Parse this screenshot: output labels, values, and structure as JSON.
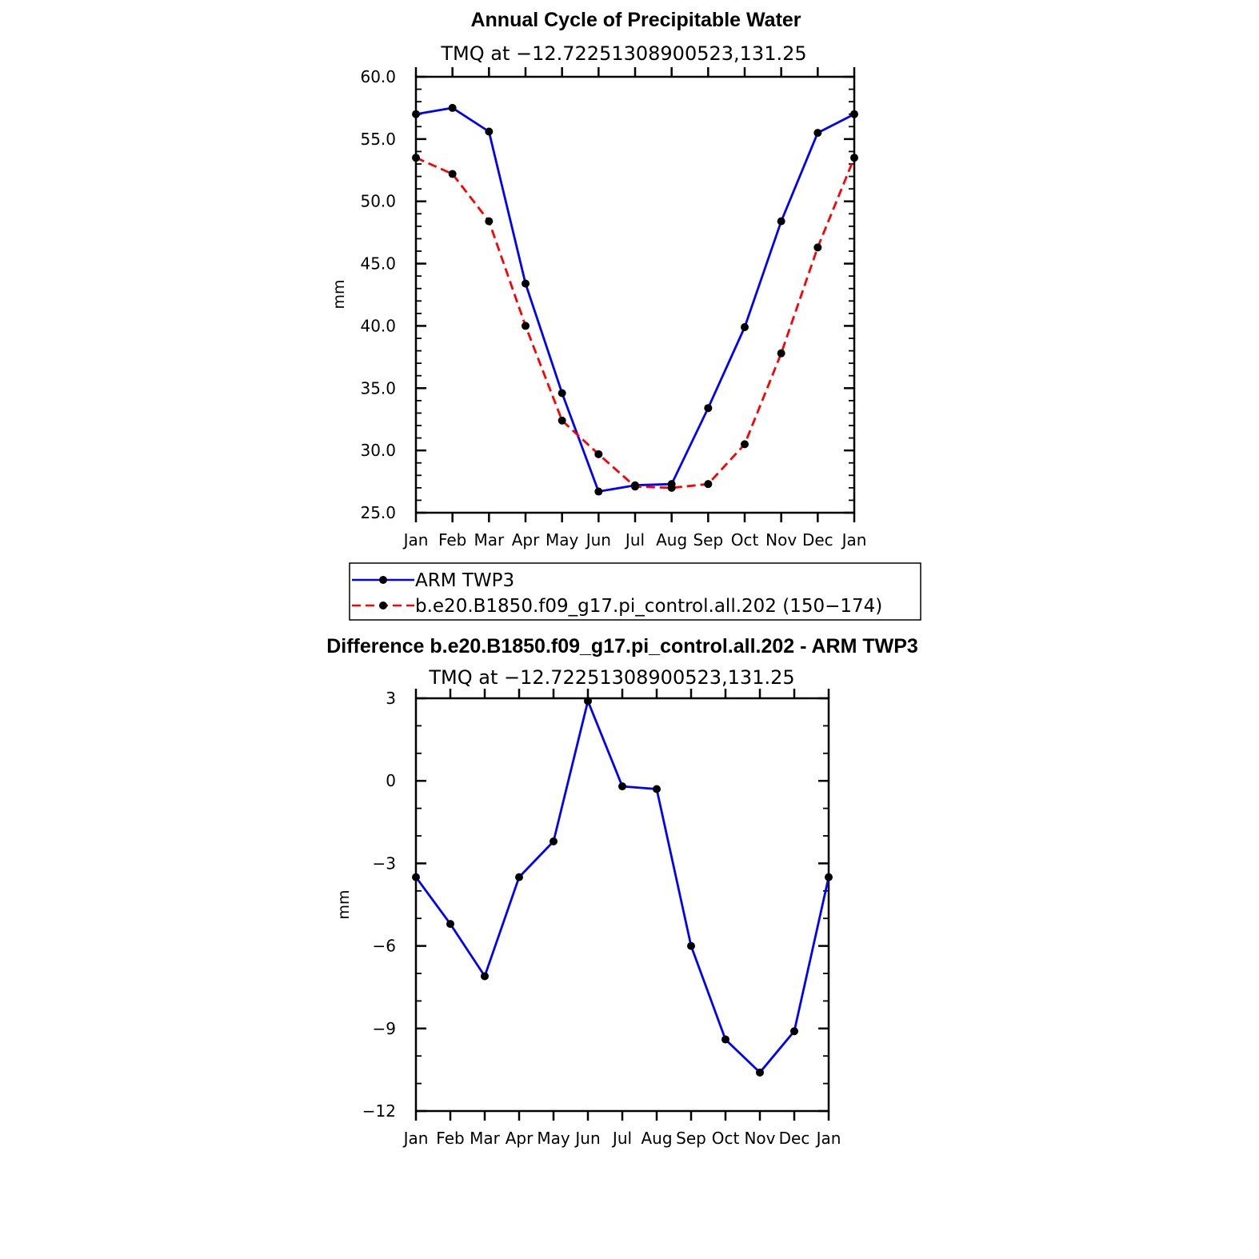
{
  "chart_data": [
    {
      "type": "line",
      "title": "Annual Cycle of Precipitable Water",
      "subtitle": "TMQ at −12.72251308900523,131.25",
      "ylabel": "mm",
      "xlabel": "",
      "categories": [
        "Jan",
        "Feb",
        "Mar",
        "Apr",
        "May",
        "Jun",
        "Jul",
        "Aug",
        "Sep",
        "Oct",
        "Nov",
        "Dec",
        "Jan"
      ],
      "ylim": [
        25,
        60
      ],
      "yticks": [
        "25.0",
        "30.0",
        "35.0",
        "40.0",
        "45.0",
        "50.0",
        "55.0",
        "60.0"
      ],
      "grid": false,
      "legend_placement": "below",
      "series": [
        {
          "name": "ARM TWP3",
          "color": "#0000ff",
          "style": "solid",
          "values": [
            57.0,
            57.5,
            55.6,
            43.4,
            34.6,
            26.7,
            27.2,
            27.3,
            33.4,
            39.9,
            48.4,
            55.5,
            57.0
          ]
        },
        {
          "name": "b.e20.B1850.f09_g17.pi_control.all.202 (150−174)",
          "color": "#ff0000",
          "style": "dashed",
          "values": [
            53.5,
            52.2,
            48.4,
            40.0,
            32.4,
            29.7,
            27.1,
            27.0,
            27.3,
            30.5,
            37.8,
            46.3,
            53.5
          ]
        }
      ]
    },
    {
      "type": "line",
      "title": "Difference b.e20.B1850.f09_g17.pi_control.all.202 - ARM TWP3",
      "subtitle": "TMQ at −12.72251308900523,131.25",
      "ylabel": "mm",
      "xlabel": "",
      "categories": [
        "Jan",
        "Feb",
        "Mar",
        "Apr",
        "May",
        "Jun",
        "Jul",
        "Aug",
        "Sep",
        "Oct",
        "Nov",
        "Dec",
        "Jan"
      ],
      "ylim": [
        -12,
        3
      ],
      "yticks": [
        "−12",
        "−9",
        "−6",
        "−3",
        "0",
        "3"
      ],
      "grid": false,
      "series": [
        {
          "color": "#0000ff",
          "style": "solid",
          "values": [
            -3.5,
            -5.2,
            -7.1,
            -3.5,
            -2.2,
            2.9,
            -0.2,
            -0.3,
            -6.0,
            -9.4,
            -10.6,
            -9.1,
            -3.5
          ]
        }
      ]
    }
  ]
}
